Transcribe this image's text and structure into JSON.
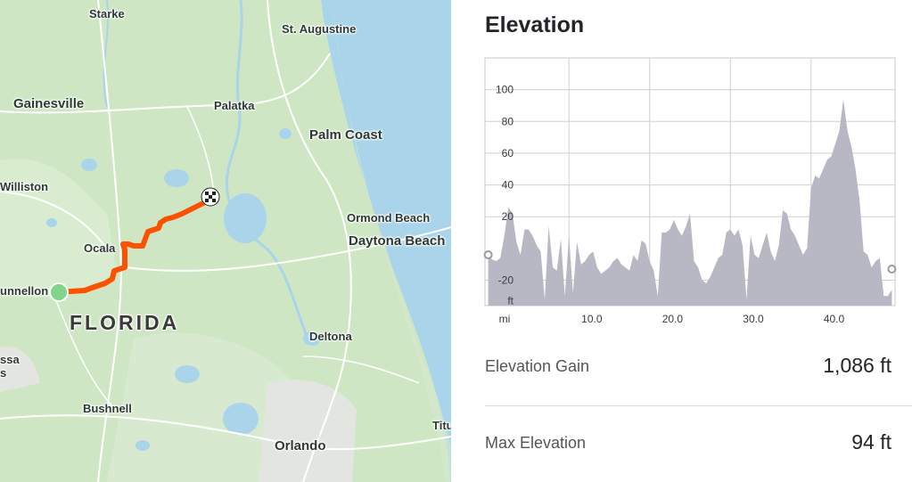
{
  "map": {
    "labels": {
      "starke": "Starke",
      "st_augustine": "St. Augustine",
      "gainesville": "Gainesville",
      "palatka": "Palatka",
      "palm_coast": "Palm Coast",
      "williston": "Williston",
      "ormond_beach": "Ormond Beach",
      "daytona_beach": "Daytona Beach",
      "ocala": "Ocala",
      "dunnellon": "unnellon",
      "florida": "FLORIDA",
      "lecanto": "ssa",
      "lecanto2": "s",
      "deltona": "Deltona",
      "bushnell": "Bushnell",
      "titusville": "Titu",
      "orlando": "Orlando"
    },
    "colors": {
      "land": "#cfe6c4",
      "water": "#a9d4ea",
      "route": "#fc5200",
      "start": "#7fd68a"
    },
    "icons": {
      "start": "start-marker-icon",
      "finish": "finish-flag-icon"
    }
  },
  "elevation": {
    "title": "Elevation",
    "unit_label": "ft",
    "x_unit_label": "mi",
    "stats": {
      "gain_label": "Elevation Gain",
      "gain_value": "1,086 ft",
      "max_label": "Max Elevation",
      "max_value": "94 ft"
    }
  },
  "chart_data": {
    "type": "area",
    "title": "Elevation",
    "xlabel": "mi",
    "ylabel": "ft",
    "xlim": [
      -0.4,
      50.4
    ],
    "ylim": [
      -36,
      120
    ],
    "x_ticks": [
      10.0,
      20.0,
      30.0,
      40.0
    ],
    "x_tick_labels": [
      "10.0",
      "20.0",
      "30.0",
      "40.0"
    ],
    "y_ticks": [
      -20,
      20,
      40,
      60,
      80,
      100
    ],
    "y_tick_labels": [
      "-20",
      "20",
      "40",
      "60",
      "80",
      "100"
    ],
    "grid": true,
    "fill": "#b8b8c4",
    "series": [
      {
        "x": [
          0,
          0.5,
          1,
          1.5,
          2,
          2.5,
          3,
          3.5,
          4,
          4.5,
          5,
          5.5,
          6,
          6.5,
          7,
          7.5,
          8,
          8.5,
          9,
          9.5,
          10,
          10.5,
          11,
          11.5,
          12,
          12.5,
          13,
          13.5,
          14,
          14.5,
          15,
          15.5,
          16,
          16.5,
          17,
          17.5,
          18,
          18.5,
          19,
          19.5,
          20,
          20.5,
          21,
          21.5,
          22,
          22.5,
          23,
          23.5,
          24,
          24.5,
          25,
          25.5,
          26,
          26.5,
          27,
          27.5,
          28,
          28.5,
          29,
          29.5,
          30,
          30.5,
          31,
          31.5,
          32,
          32.5,
          33,
          33.5,
          34,
          34.5,
          35,
          35.5,
          36,
          36.5,
          37,
          37.5,
          38,
          38.5,
          39,
          39.5,
          40,
          40.5,
          41,
          41.5,
          42,
          42.5,
          43,
          43.5,
          44,
          44.5,
          45,
          45.5,
          46,
          46.5,
          47,
          47.5,
          48,
          48.5,
          49,
          49.5,
          50
        ],
        "values": [
          -4,
          -7,
          -8,
          -6,
          8,
          26,
          22,
          4,
          -4,
          12,
          12,
          8,
          2,
          -2,
          -32,
          14,
          -12,
          -14,
          6,
          -30,
          8,
          -28,
          4,
          -10,
          -8,
          -4,
          -2,
          -12,
          -16,
          -14,
          -12,
          -8,
          -6,
          -10,
          -12,
          -14,
          -4,
          -8,
          5,
          3,
          -8,
          -14,
          -30,
          10,
          10,
          12,
          18,
          12,
          8,
          14,
          22,
          -8,
          -12,
          -20,
          -22,
          -18,
          -12,
          -6,
          -4,
          10,
          12,
          8,
          12,
          2,
          -32,
          8,
          -4,
          -6,
          2,
          10,
          -2,
          -8,
          2,
          24,
          22,
          12,
          8,
          2,
          -4,
          0,
          38,
          46,
          44,
          50,
          56,
          58,
          66,
          74,
          94,
          74,
          64,
          50,
          30,
          -2,
          -4,
          -12,
          -8,
          -6,
          -30,
          -30,
          -26
        ]
      }
    ]
  }
}
